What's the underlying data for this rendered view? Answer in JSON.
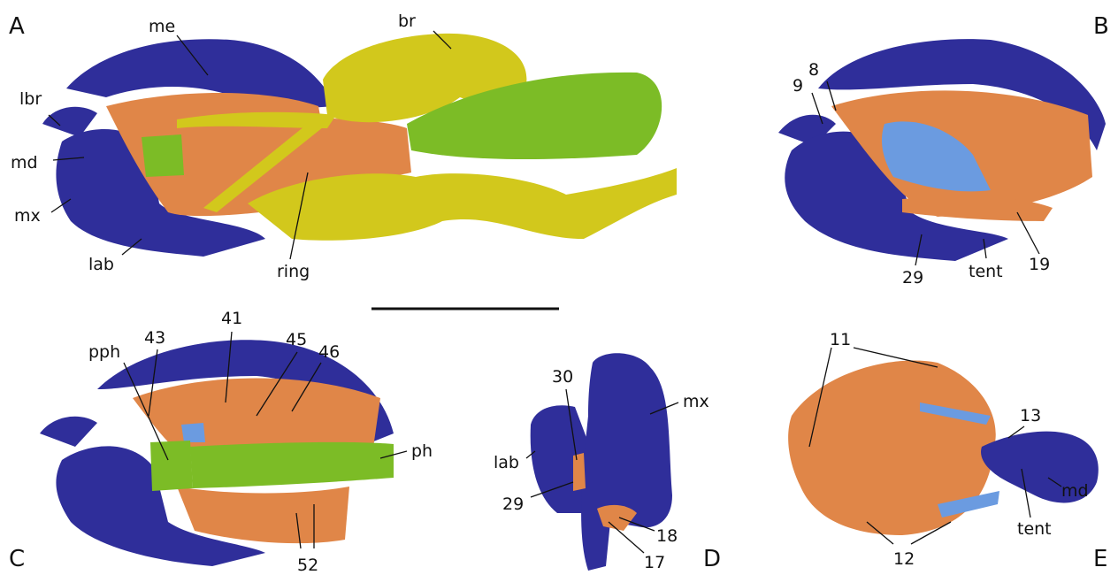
{
  "panels": [
    {
      "letter": "A",
      "labels": [
        "me",
        "br",
        "lbr",
        "md",
        "mx",
        "lab",
        "ring"
      ]
    },
    {
      "letter": "B",
      "labels": [
        "9",
        "8",
        "29",
        "tent",
        "19"
      ]
    },
    {
      "letter": "C",
      "labels": [
        "43",
        "41",
        "45",
        "46",
        "pph",
        "ph",
        "52"
      ]
    },
    {
      "letter": "D",
      "labels": [
        "30",
        "mx",
        "lab",
        "29",
        "18",
        "17"
      ]
    },
    {
      "letter": "E",
      "labels": [
        "11",
        "13",
        "md",
        "tent",
        "12"
      ]
    }
  ]
}
